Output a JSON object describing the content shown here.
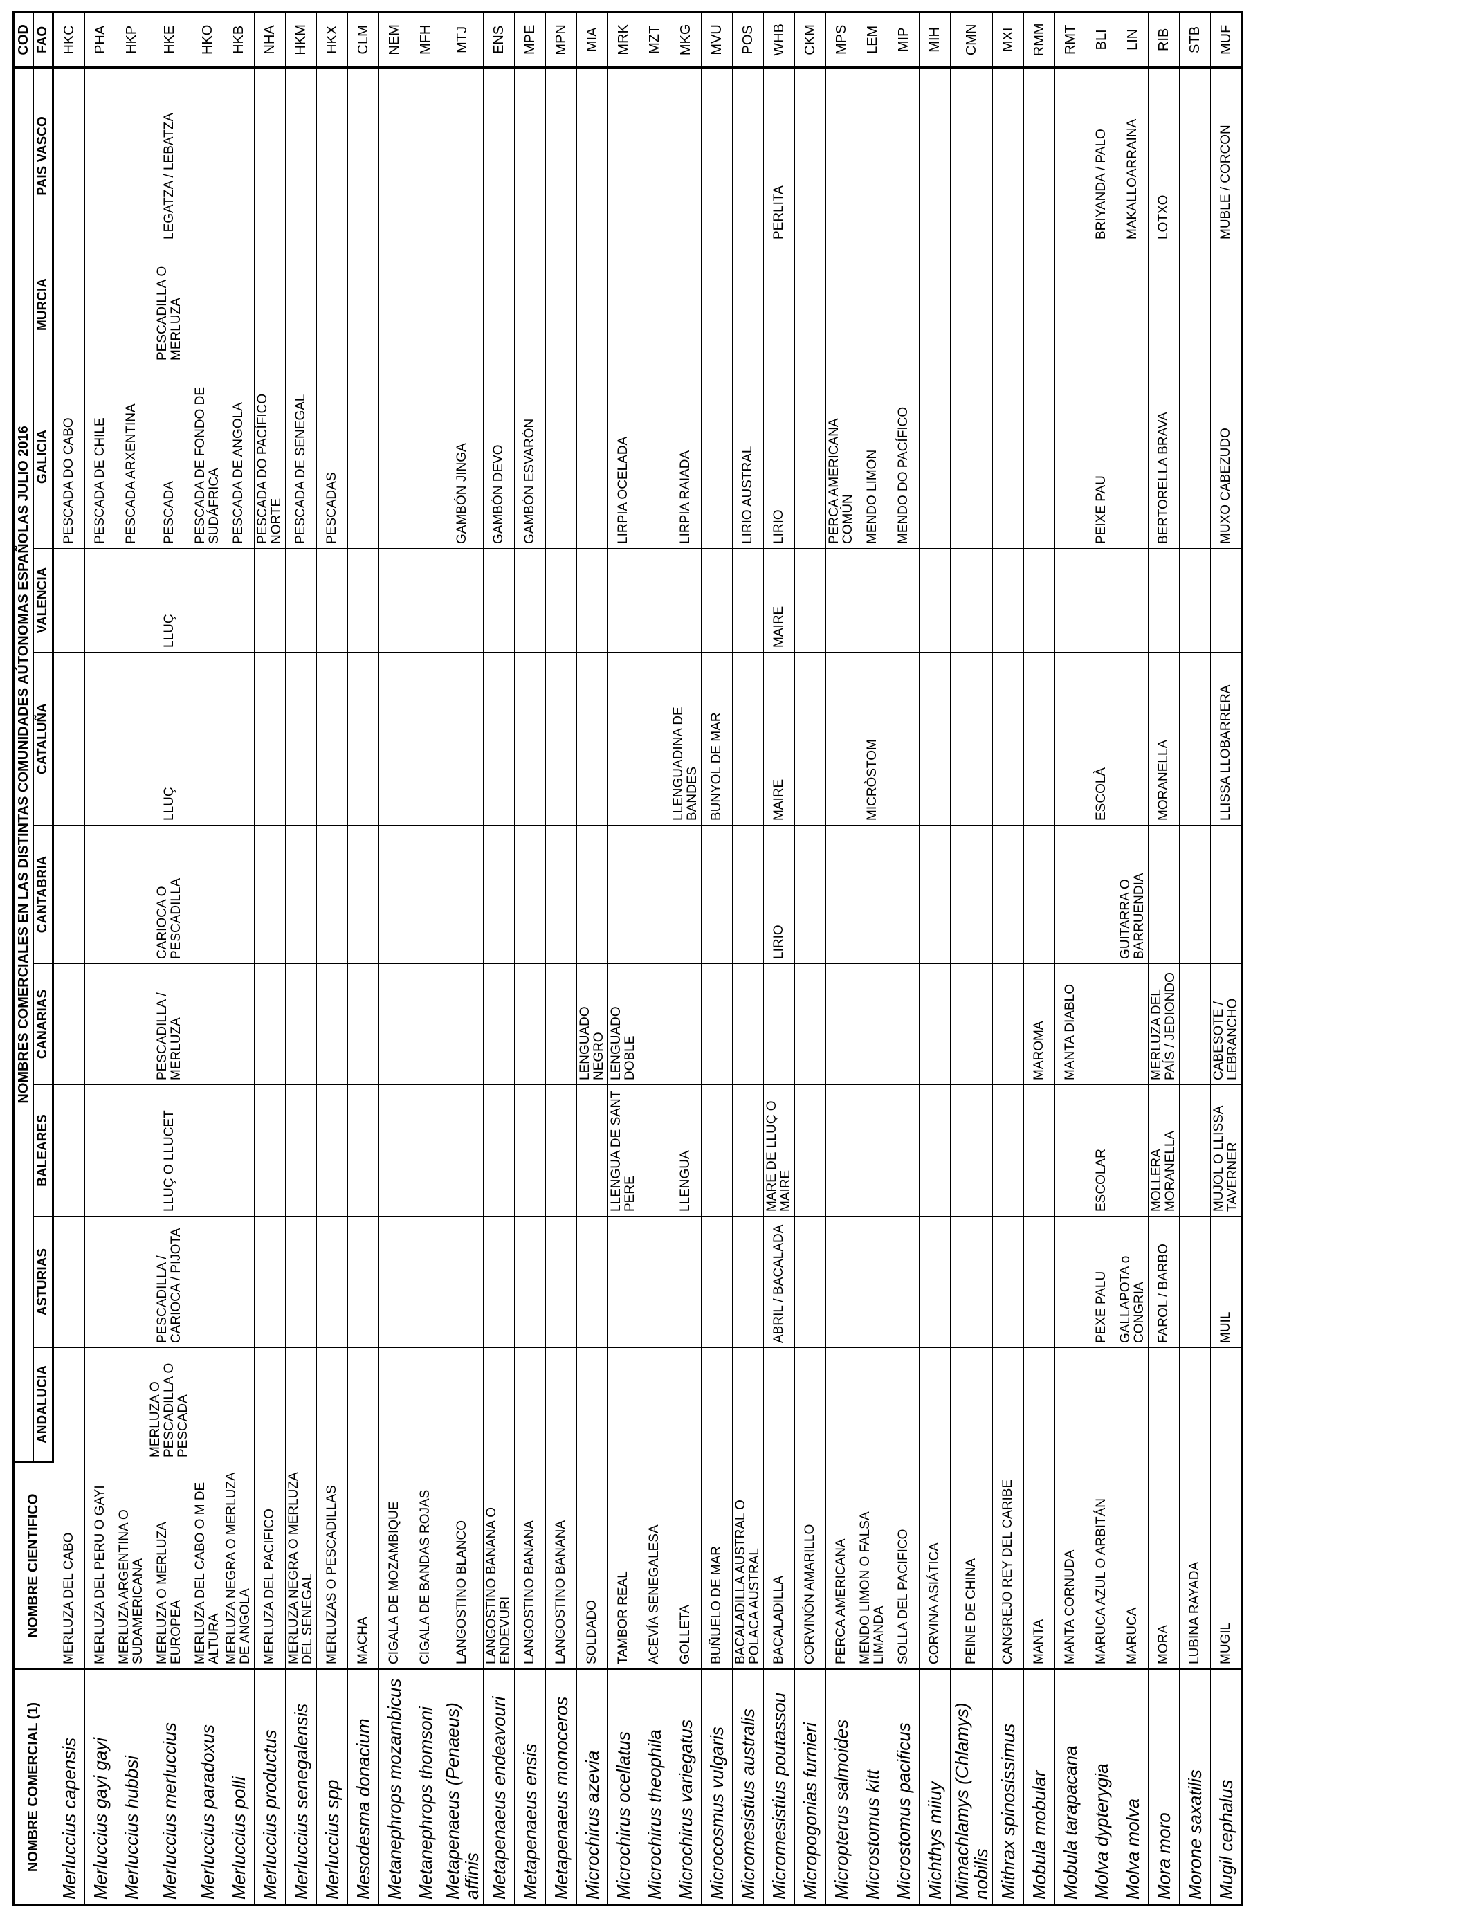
{
  "header": {
    "col1": "NOMBRE COMERCIAL (1)",
    "col2": "NOMBRE CIENTIFICO",
    "group": "NOMBRES COMERCIALES EN LAS DISTINTAS COMUNIDADES AÚTONOMAS ESPAÑOLAS JULIO 2016",
    "cod": "COD",
    "regions": [
      "ANDALUCIA",
      "ASTURIAS",
      "BALEARES",
      "CANARIAS",
      "CANTABRIA",
      "CATALUÑA",
      "VALENCIA",
      "GALICIA",
      "MURCIA",
      "PAIS VASCO"
    ],
    "fao": "FAO"
  },
  "rows": [
    {
      "sci": "Merluccius capensis",
      "common": "MERLUZA DEL CABO",
      "regions": [
        "",
        "",
        "",
        "",
        "",
        "",
        "",
        "PESCADA DO CABO",
        "",
        ""
      ],
      "fao": "HKC"
    },
    {
      "sci": "Merluccius gayi gayi",
      "common": "MERLUZA DEL PERU O GAYI",
      "regions": [
        "",
        "",
        "",
        "",
        "",
        "",
        "",
        "PESCADA DE CHILE",
        "",
        ""
      ],
      "fao": "PHA"
    },
    {
      "sci": "Merluccius hubbsi",
      "common": "MERLUZA ARGENTINA O SUDAMERICANA",
      "regions": [
        "",
        "",
        "",
        "",
        "",
        "",
        "",
        "PESCADA ARXENTINA",
        "",
        ""
      ],
      "fao": "HKP"
    },
    {
      "sci": "Merluccius merluccius",
      "common": "MERLUZA O MERLUZA EUROPEA",
      "regions": [
        "MERLUZA O PESCADILLA O PESCADA",
        "PESCADILLA / CARIOCA / PIJOTA",
        "LLUÇ O LLUCET",
        "PESCADILLA / MERLUZA",
        "CARIOCA O PESCADILLA",
        "LLUÇ",
        "LLUÇ",
        "PESCADA",
        "PESCADILLA O MERLUZA",
        "LEGATZA / LEBATZA"
      ],
      "fao": "HKE"
    },
    {
      "sci": "Merluccius paradoxus",
      "common": "MERLUZA DEL CABO O M DE ALTURA",
      "regions": [
        "",
        "",
        "",
        "",
        "",
        "",
        "",
        "PESCADA DE FONDO DE SUDÁFRICA",
        "",
        ""
      ],
      "fao": "HKO"
    },
    {
      "sci": "Merluccius polli",
      "common": "MERLUZA NEGRA O MERLUZA DE ANGOLA",
      "regions": [
        "",
        "",
        "",
        "",
        "",
        "",
        "",
        "PESCADA DE ANGOLA",
        "",
        ""
      ],
      "fao": "HKB"
    },
    {
      "sci": "Merluccius productus",
      "common": "MERLUZA DEL PACIFICO",
      "regions": [
        "",
        "",
        "",
        "",
        "",
        "",
        "",
        "PESCADA DO PACÍFICO NORTE",
        "",
        ""
      ],
      "fao": "NHA"
    },
    {
      "sci": "Merluccius senegalensis",
      "common": "MERLUZA NEGRA O MERLUZA DEL SENEGAL",
      "regions": [
        "",
        "",
        "",
        "",
        "",
        "",
        "",
        "PESCADA DE SENEGAL",
        "",
        ""
      ],
      "fao": "HKM"
    },
    {
      "sci": "Merluccius spp",
      "common": "MERLUZAS O PESCADILLAS",
      "regions": [
        "",
        "",
        "",
        "",
        "",
        "",
        "",
        "PESCADAS",
        "",
        ""
      ],
      "fao": "HKX"
    },
    {
      "sci": "Mesodesma donacium",
      "common": "MACHA",
      "regions": [
        "",
        "",
        "",
        "",
        "",
        "",
        "",
        "",
        "",
        ""
      ],
      "fao": "CLM"
    },
    {
      "sci": "Metanephrops mozambicus",
      "common": "CIGALA DE MOZAMBIQUE",
      "regions": [
        "",
        "",
        "",
        "",
        "",
        "",
        "",
        "",
        "",
        ""
      ],
      "fao": "NEM"
    },
    {
      "sci": "Metanephrops thomsoni",
      "common": "CIGALA DE BANDAS ROJAS",
      "regions": [
        "",
        "",
        "",
        "",
        "",
        "",
        "",
        "",
        "",
        ""
      ],
      "fao": "MFH"
    },
    {
      "sci": "Metapenaeus (Penaeus) affinis",
      "common": "LANGOSTINO BLANCO",
      "regions": [
        "",
        "",
        "",
        "",
        "",
        "",
        "",
        "GAMBÓN JINGA",
        "",
        ""
      ],
      "fao": "MTJ"
    },
    {
      "sci": "Metapenaeus endeavouri",
      "common": "LANGOSTINO BANANA O ENDEVURI",
      "regions": [
        "",
        "",
        "",
        "",
        "",
        "",
        "",
        "GAMBÓN DEVO",
        "",
        ""
      ],
      "fao": "ENS"
    },
    {
      "sci": "Metapenaeus ensis",
      "common": "LANGOSTINO BANANA",
      "regions": [
        "",
        "",
        "",
        "",
        "",
        "",
        "",
        "GAMBÓN ESVARÓN",
        "",
        ""
      ],
      "fao": "MPE"
    },
    {
      "sci": "Metapenaeus monoceros",
      "common": "LANGOSTINO BANANA",
      "regions": [
        "",
        "",
        "",
        "",
        "",
        "",
        "",
        "",
        "",
        ""
      ],
      "fao": "MPN"
    },
    {
      "sci": "Microchirus azevia",
      "common": "SOLDADO",
      "regions": [
        "",
        "",
        "",
        "LENGUADO NEGRO",
        "",
        "",
        "",
        "",
        "",
        ""
      ],
      "fao": "MIA"
    },
    {
      "sci": "Microchirus ocellatus",
      "common": "TAMBOR REAL",
      "regions": [
        "",
        "",
        "LLENGUA DE SANT PERE",
        "LENGUADO DOBLE",
        "",
        "",
        "",
        "LIRPIA OCELADA",
        "",
        ""
      ],
      "fao": "MRK"
    },
    {
      "sci": "Microchirus theophila",
      "common": "ACEVÍA SENEGALESA",
      "regions": [
        "",
        "",
        "",
        "",
        "",
        "",
        "",
        "",
        "",
        ""
      ],
      "fao": "MZT"
    },
    {
      "sci": "Microchirus variegatus",
      "common": "GOLLETA",
      "regions": [
        "",
        "",
        "LLENGUA",
        "",
        "",
        "LLENGUADINA DE BANDES",
        "",
        "LIRPIA RAIADA",
        "",
        ""
      ],
      "fao": "MKG"
    },
    {
      "sci": "Microcosmus vulgaris",
      "common": "BUÑUELO DE MAR",
      "regions": [
        "",
        "",
        "",
        "",
        "",
        "BUNYOL DE MAR",
        "",
        "",
        "",
        ""
      ],
      "fao": "MVU"
    },
    {
      "sci": "Micromesistius australis",
      "common": "BACALADILLA AUSTRAL O POLACA AUSTRAL",
      "regions": [
        "",
        "",
        "",
        "",
        "",
        "",
        "",
        "LIRIO AUSTRAL",
        "",
        ""
      ],
      "fao": "POS"
    },
    {
      "sci": "Micromesistius poutassou",
      "common": "BACALADILLA",
      "regions": [
        "",
        "ABRIL / BACALADA",
        "MARE DE LLUÇ O MAIRE",
        "",
        "LIRIO",
        "MAIRE",
        "MAIRE",
        "LIRIO",
        "",
        "PERLITA"
      ],
      "fao": "WHB"
    },
    {
      "sci": "Micropogonias furnieri",
      "common": "CORVINÓN AMARILLO",
      "regions": [
        "",
        "",
        "",
        "",
        "",
        "",
        "",
        "",
        "",
        ""
      ],
      "fao": "CKM"
    },
    {
      "sci": "Micropterus salmoides",
      "common": "PERCA AMERICANA",
      "regions": [
        "",
        "",
        "",
        "",
        "",
        "",
        "",
        "PERCA AMERICANA COMÚN",
        "",
        ""
      ],
      "fao": "MPS"
    },
    {
      "sci": "Microstomus kitt",
      "common": "MENDO LIMON O FALSA LIMANDA",
      "regions": [
        "",
        "",
        "",
        "",
        "",
        "MICRÒSTOM",
        "",
        "MENDO LIMON",
        "",
        ""
      ],
      "fao": "LEM"
    },
    {
      "sci": "Microstomus pacificus",
      "common": "SOLLA DEL PACIFICO",
      "regions": [
        "",
        "",
        "",
        "",
        "",
        "",
        "",
        "MENDO DO PACÍFICO",
        "",
        ""
      ],
      "fao": "MIP"
    },
    {
      "sci": "Michthys miiuy",
      "common": "CORVINA ASIÁTICA",
      "regions": [
        "",
        "",
        "",
        "",
        "",
        "",
        "",
        "",
        "",
        ""
      ],
      "fao": "MIH"
    },
    {
      "sci": "Mimachlamys (Chlamys) nobilis",
      "common": "PEINE DE CHINA",
      "regions": [
        "",
        "",
        "",
        "",
        "",
        "",
        "",
        "",
        "",
        ""
      ],
      "fao": "CMN"
    },
    {
      "sci": "Mithrax spinosissimus",
      "common": "CANGREJO REY DEL CARIBE",
      "regions": [
        "",
        "",
        "",
        "",
        "",
        "",
        "",
        "",
        "",
        ""
      ],
      "fao": "MXI"
    },
    {
      "sci": "Mobula mobular",
      "common": "MANTA",
      "regions": [
        "",
        "",
        "",
        "MAROMA",
        "",
        "",
        "",
        "",
        "",
        ""
      ],
      "fao": "RMM"
    },
    {
      "sci": "Mobula tarapacana",
      "common": "MANTA CORNUDA",
      "regions": [
        "",
        "",
        "",
        "MANTA DIABLO",
        "",
        "",
        "",
        "",
        "",
        ""
      ],
      "fao": "RMT"
    },
    {
      "sci": "Molva dypterygia",
      "common": "MARUCA AZUL O ARBITÁN",
      "regions": [
        "",
        "PEXE PALU",
        "ESCOLAR",
        "",
        "",
        "ESCOLÀ",
        "",
        "PEIXE PAU",
        "",
        "BRIYANDA / PALO"
      ],
      "fao": "BLI"
    },
    {
      "sci": "Molva molva",
      "common": "MARUCA",
      "regions": [
        "",
        "GALLAPOTA o CONGRIA",
        "",
        "",
        "GUITARRA O BARRUENDIA",
        "",
        "",
        "",
        "",
        "MAKALLOARRAINA"
      ],
      "fao": "LIN"
    },
    {
      "sci": "Mora moro",
      "common": "MORA",
      "regions": [
        "",
        "FAROL / BARBO",
        "MOLLERA MORANELLA",
        "MERLUZA DEL PAÍS / JEDIONDO",
        "",
        "MORANELLA",
        "",
        "BERTORELLA BRAVA",
        "",
        "LOTXO"
      ],
      "fao": "RIB"
    },
    {
      "sci": "Morone saxatilis",
      "common": "LUBINA RAYADA",
      "regions": [
        "",
        "",
        "",
        "",
        "",
        "",
        "",
        "",
        "",
        ""
      ],
      "fao": "STB"
    },
    {
      "sci": "Mugil cephalus",
      "common": "MUGIL",
      "regions": [
        "",
        "MUIL",
        "MUJOL O LLISSA TAVERNER",
        "CABESOTE / LEBRANCHO",
        "",
        "LLISSA LLOBARRERA",
        "",
        "MUXO CABEZUDO",
        "",
        "MUBLE / CORCON"
      ],
      "fao": "MUF"
    }
  ]
}
